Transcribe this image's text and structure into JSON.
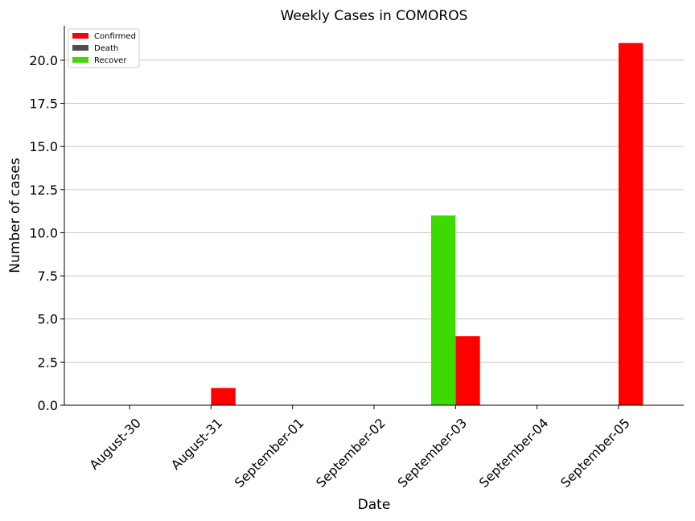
{
  "chart_data": {
    "type": "bar",
    "title": "Weekly Cases in COMOROS",
    "xlabel": "Date",
    "ylabel": "Number of cases",
    "categories": [
      "August-30",
      "August-31",
      "September-01",
      "September-02",
      "September-03",
      "September-04",
      "September-05"
    ],
    "series": [
      {
        "name": "Confirmed",
        "color": "#ff0000",
        "values": [
          0,
          1,
          0,
          0,
          4,
          0,
          21
        ]
      },
      {
        "name": "Death",
        "color": "#4d4d4d",
        "values": [
          0,
          0,
          0,
          0,
          0,
          0,
          0
        ]
      },
      {
        "name": "Recover",
        "color": "#3dd900",
        "values": [
          0,
          0,
          0,
          0,
          11,
          0,
          0
        ]
      }
    ],
    "ylim": [
      0,
      22
    ],
    "yticks": [
      "0.0",
      "2.5",
      "5.0",
      "7.5",
      "10.0",
      "12.5",
      "15.0",
      "17.5",
      "20.0"
    ],
    "grid": "horizontal",
    "legend_position": "top-left"
  }
}
